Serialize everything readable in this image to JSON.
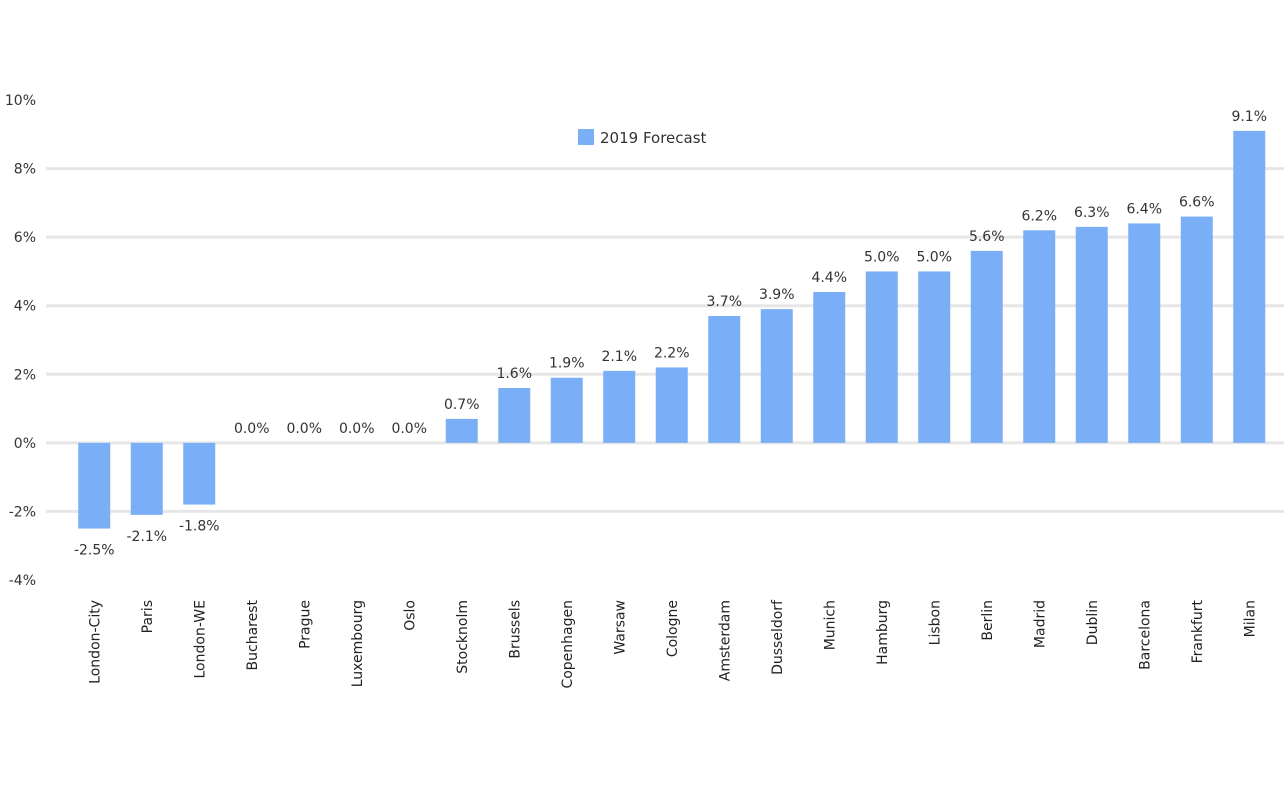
{
  "chart_data": {
    "type": "bar",
    "title": "",
    "xlabel": "",
    "ylabel": "",
    "categories": [
      "London-City",
      "Paris",
      "London-WE",
      "Bucharest",
      "Prague",
      "Luxembourg",
      "Oslo",
      "Stocknolm",
      "Brussels",
      "Copenhagen",
      "Warsaw",
      "Cologne",
      "Amsterdam",
      "Dusseldorf",
      "Munich",
      "Hamburg",
      "Lisbon",
      "Berlin",
      "Madrid",
      "Dublin",
      "Barcelona",
      "Frankfurt",
      "Milan"
    ],
    "series": [
      {
        "name": "2019 Forecast",
        "values": [
          -2.5,
          -2.1,
          -1.8,
          0.0,
          0.0,
          0.0,
          0.0,
          0.7,
          1.6,
          1.9,
          2.1,
          2.2,
          3.7,
          3.9,
          4.4,
          5.0,
          5.0,
          5.6,
          6.2,
          6.3,
          6.4,
          6.6,
          9.1
        ],
        "labels": [
          "-2.5%",
          "-2.1%",
          "-1.8%",
          "0.0%",
          "0.0%",
          "0.0%",
          "0.0%",
          "0.7%",
          "1.6%",
          "1.9%",
          "2.1%",
          "2.2%",
          "3.7%",
          "3.9%",
          "4.4%",
          "5.0%",
          "5.0%",
          "5.6%",
          "6.2%",
          "6.3%",
          "6.4%",
          "6.6%",
          "9.1%"
        ],
        "color": "#7aaff7"
      }
    ],
    "ylim": [
      -4,
      10
    ],
    "yticks": [
      10,
      8,
      6,
      4,
      2,
      0,
      -2,
      -4
    ],
    "ytick_labels": [
      "10%",
      "8%",
      "6%",
      "4%",
      "2%",
      "0%",
      "-2%",
      "-4%"
    ],
    "grid": true,
    "gridline_color": "#e6e6e6",
    "legend_position": "top-center"
  }
}
